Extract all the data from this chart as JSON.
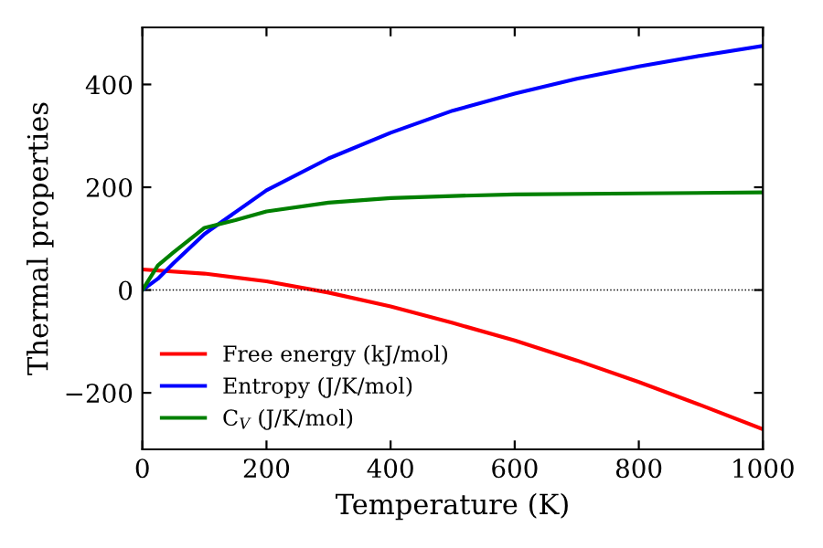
{
  "chart_data": {
    "type": "line",
    "xlabel": "Temperature (K)",
    "ylabel": "Thermal properties",
    "xlim": [
      0,
      1000
    ],
    "xticks": [
      0,
      200,
      400,
      600,
      800,
      1000
    ],
    "ylim": [
      -310,
      511
    ],
    "yticks": [
      {
        "value": -200,
        "label": "−200"
      },
      0,
      200,
      400
    ],
    "legend": "bottom left",
    "grid": false,
    "ref_lines": [
      {
        "axis": "y",
        "value": 0,
        "color": "#000000",
        "line_style": "dotted"
      }
    ],
    "series": [
      {
        "name": "Free energy (kJ/mol)",
        "color": "#ff0000",
        "x": [
          0,
          100,
          200,
          300,
          400,
          500,
          600,
          700,
          800,
          900,
          1000
        ],
        "values": [
          40,
          32,
          17,
          -5,
          -32,
          -64,
          -98,
          -137,
          -179,
          -224,
          -271
        ]
      },
      {
        "name": "Entropy (J/K/mol)",
        "color": "#0000ff",
        "x": [
          0,
          25,
          50,
          100,
          200,
          300,
          400,
          500,
          600,
          700,
          800,
          900,
          1000
        ],
        "values": [
          0,
          22,
          52,
          109,
          194,
          256,
          306,
          349,
          382,
          411,
          435,
          456,
          475
        ]
      },
      {
        "name": "C$_{V}$ (J/K/mol)",
        "color": "#008000",
        "x": [
          0,
          25,
          50,
          100,
          150,
          200,
          300,
          400,
          500,
          600,
          800,
          1000
        ],
        "values": [
          0,
          48,
          73,
          121,
          136,
          153,
          170,
          179,
          183,
          186,
          188,
          190
        ]
      }
    ]
  }
}
